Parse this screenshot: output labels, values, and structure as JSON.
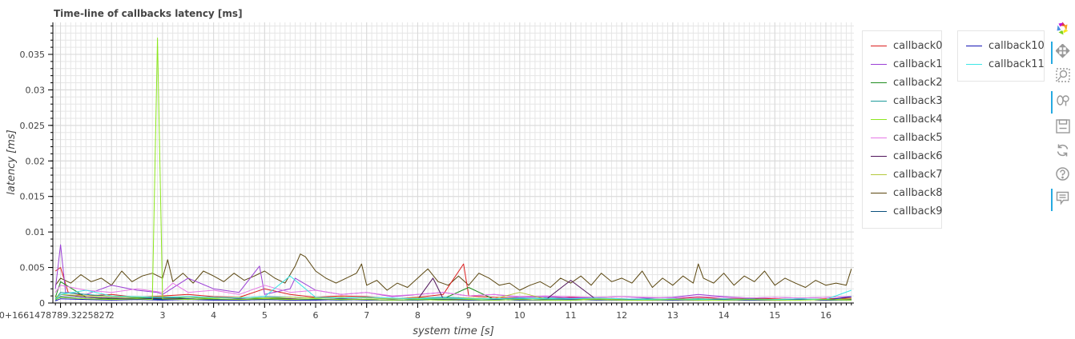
{
  "chart_data": {
    "type": "line",
    "title": "Time-line of callbacks latency [ms]",
    "xlabel": "system time [s]",
    "ylabel": "latency [ms]",
    "x_offset_label": "0+1661478789.3225827",
    "xlim": [
      0.85,
      16.55
    ],
    "ylim": [
      0,
      0.0395
    ],
    "xticks": [
      1,
      2,
      3,
      4,
      5,
      6,
      7,
      8,
      9,
      10,
      11,
      12,
      13,
      14,
      15,
      16
    ],
    "xtick_labels": [
      "0+1661478789.3225827",
      "2",
      "3",
      "4",
      "5",
      "6",
      "7",
      "8",
      "9",
      "10",
      "11",
      "12",
      "13",
      "14",
      "15",
      "16"
    ],
    "yticks": [
      0,
      0.005,
      0.01,
      0.015,
      0.02,
      0.025,
      0.03,
      0.035
    ],
    "ytick_labels": [
      "0",
      "0.005",
      "0.01",
      "0.015",
      "0.02",
      "0.025",
      "0.03",
      "0.035"
    ],
    "grid": true,
    "legend_placement": "right, outside plot",
    "series": [
      {
        "name": "callback0",
        "color": "#dc1e1e",
        "x": [
          0.9,
          1.0,
          1.15,
          1.5,
          2.0,
          2.5,
          3.0,
          3.5,
          4.0,
          4.5,
          5.0,
          5.5,
          6.0,
          6.5,
          7.0,
          7.5,
          8.0,
          8.5,
          8.9,
          9.0,
          9.5,
          10.0,
          10.5,
          11.0,
          11.5,
          12.0,
          12.5,
          13.0,
          13.5,
          14.0,
          14.5,
          15.0,
          15.5,
          16.0,
          16.5
        ],
        "y": [
          0.0045,
          0.005,
          0.0015,
          0.001,
          0.0012,
          0.0008,
          0.001,
          0.0012,
          0.0009,
          0.0008,
          0.002,
          0.0012,
          0.0008,
          0.001,
          0.0009,
          0.0006,
          0.0008,
          0.0012,
          0.0055,
          0.001,
          0.0008,
          0.0007,
          0.0006,
          0.0008,
          0.0007,
          0.0006,
          0.0005,
          0.0006,
          0.0008,
          0.0006,
          0.0007,
          0.0006,
          0.0005,
          0.0006,
          0.0007
        ]
      },
      {
        "name": "callback1",
        "color": "#9b3fd6",
        "x": [
          0.9,
          1.0,
          1.1,
          1.5,
          2.0,
          2.5,
          2.9,
          3.0,
          3.5,
          4.0,
          4.5,
          4.9,
          5.0,
          5.5,
          5.6,
          6.0,
          6.5,
          7.0,
          7.5,
          8.0,
          8.5,
          9.0,
          9.5,
          10.0,
          10.5,
          11.0,
          11.5,
          12.0,
          12.5,
          13.0,
          13.5,
          14.0,
          14.5,
          15.0,
          15.5,
          16.0,
          16.5
        ],
        "y": [
          0.002,
          0.0082,
          0.0015,
          0.0012,
          0.0025,
          0.0018,
          0.0015,
          0.0012,
          0.0035,
          0.002,
          0.0015,
          0.0052,
          0.0012,
          0.002,
          0.0035,
          0.0018,
          0.0012,
          0.0015,
          0.0009,
          0.0012,
          0.0015,
          0.001,
          0.0012,
          0.0008,
          0.0009,
          0.0007,
          0.0008,
          0.0009,
          0.0007,
          0.0008,
          0.0012,
          0.0009,
          0.0007,
          0.0008,
          0.0007,
          0.0008,
          0.0009
        ]
      },
      {
        "name": "callback2",
        "color": "#1e8c1e",
        "x": [
          0.9,
          1.0,
          1.5,
          2.0,
          2.5,
          3.0,
          3.5,
          4.0,
          4.5,
          5.0,
          5.5,
          6.0,
          6.5,
          7.0,
          7.5,
          8.0,
          8.5,
          9.0,
          9.5,
          10.0,
          10.5,
          11.0,
          11.5,
          12.0,
          12.5,
          13.0,
          13.5,
          14.0,
          14.5,
          15.0,
          15.5,
          16.0,
          16.5
        ],
        "y": [
          0.0008,
          0.003,
          0.0008,
          0.0006,
          0.0007,
          0.0006,
          0.0008,
          0.0006,
          0.0005,
          0.0007,
          0.0006,
          0.0005,
          0.0006,
          0.0005,
          0.0004,
          0.0005,
          0.0006,
          0.0022,
          0.0005,
          0.0004,
          0.0005,
          0.0004,
          0.0005,
          0.0004,
          0.0004,
          0.0005,
          0.0004,
          0.0005,
          0.0004,
          0.0004,
          0.0005,
          0.0004,
          0.0005
        ]
      },
      {
        "name": "callback3",
        "color": "#1e9b9b",
        "x": [
          0.9,
          1.0,
          1.5,
          2.0,
          2.5,
          3.0,
          3.5,
          4.0,
          4.5,
          5.0,
          5.5,
          6.0,
          6.5,
          7.0,
          7.5,
          8.0,
          8.5,
          9.0,
          9.5,
          10.0,
          10.5,
          11.0,
          11.5,
          12.0,
          12.5,
          13.0,
          13.5,
          14.0,
          14.5,
          15.0,
          15.5,
          16.0,
          16.5
        ],
        "y": [
          0.0006,
          0.0015,
          0.0012,
          0.0009,
          0.0008,
          0.0007,
          0.0009,
          0.0008,
          0.0007,
          0.0009,
          0.0008,
          0.0007,
          0.0008,
          0.0007,
          0.0006,
          0.0007,
          0.0008,
          0.0007,
          0.0006,
          0.0006,
          0.0007,
          0.0006,
          0.0006,
          0.0005,
          0.0006,
          0.0005,
          0.0006,
          0.0005,
          0.0006,
          0.0005,
          0.0006,
          0.0005,
          0.0006
        ]
      },
      {
        "name": "callback4",
        "color": "#8ce61e",
        "x": [
          0.9,
          1.0,
          1.5,
          2.0,
          2.5,
          2.8,
          2.9,
          3.0,
          3.5,
          4.0,
          4.5,
          5.0,
          5.5,
          6.0,
          6.5,
          7.0,
          7.5,
          8.0,
          8.5,
          9.0,
          9.5,
          10.0,
          10.5,
          11.0,
          11.5,
          12.0,
          12.5,
          13.0,
          13.5,
          14.0,
          14.5,
          15.0,
          15.5,
          16.0,
          16.5
        ],
        "y": [
          0.0005,
          0.0008,
          0.0006,
          0.0005,
          0.0006,
          0.0005,
          0.0373,
          0.0006,
          0.0005,
          0.0006,
          0.0005,
          0.0006,
          0.0005,
          0.0006,
          0.0005,
          0.0005,
          0.0004,
          0.0005,
          0.0004,
          0.0005,
          0.0004,
          0.0005,
          0.0004,
          0.0004,
          0.0005,
          0.0004,
          0.0004,
          0.0005,
          0.0004,
          0.0004,
          0.0005,
          0.0004,
          0.0004,
          0.0005,
          0.0004
        ]
      },
      {
        "name": "callback5",
        "color": "#e678e6",
        "x": [
          0.9,
          1.0,
          1.5,
          2.0,
          2.5,
          3.0,
          3.2,
          3.5,
          4.0,
          4.5,
          5.0,
          5.5,
          6.0,
          6.5,
          7.0,
          7.5,
          8.0,
          8.5,
          9.0,
          9.5,
          10.0,
          10.5,
          11.0,
          11.5,
          12.0,
          12.5,
          13.0,
          13.5,
          14.0,
          14.5,
          15.0,
          15.5,
          16.0,
          16.5
        ],
        "y": [
          0.0015,
          0.0025,
          0.0018,
          0.0015,
          0.002,
          0.0015,
          0.0028,
          0.0015,
          0.0018,
          0.0012,
          0.0025,
          0.0015,
          0.0018,
          0.0012,
          0.0015,
          0.001,
          0.0012,
          0.0015,
          0.001,
          0.0012,
          0.0009,
          0.001,
          0.0009,
          0.0008,
          0.0009,
          0.0008,
          0.0007,
          0.0009,
          0.0008,
          0.0007,
          0.0008,
          0.0007,
          0.0008,
          0.0009
        ]
      },
      {
        "name": "callback6",
        "color": "#50145a",
        "x": [
          0.9,
          1.0,
          1.5,
          2.0,
          2.5,
          3.0,
          3.5,
          4.0,
          4.5,
          5.0,
          5.5,
          6.0,
          6.5,
          7.0,
          7.5,
          8.0,
          8.3,
          8.5,
          9.0,
          9.5,
          10.0,
          10.5,
          11.0,
          11.5,
          12.0,
          12.5,
          13.0,
          13.5,
          14.0,
          14.5,
          15.0,
          15.5,
          16.0,
          16.5
        ],
        "y": [
          0.0005,
          0.0012,
          0.0008,
          0.0007,
          0.0006,
          0.0007,
          0.0006,
          0.0005,
          0.0006,
          0.0005,
          0.0006,
          0.0005,
          0.0006,
          0.0005,
          0.0004,
          0.0005,
          0.0035,
          0.0006,
          0.0005,
          0.0004,
          0.0005,
          0.0004,
          0.0032,
          0.0005,
          0.0004,
          0.0004,
          0.0005,
          0.0004,
          0.0005,
          0.0004,
          0.0004,
          0.0005,
          0.0004,
          0.0005
        ]
      },
      {
        "name": "callback7",
        "color": "#b4c83c",
        "x": [
          0.9,
          1.0,
          1.5,
          2.0,
          2.5,
          3.0,
          3.5,
          4.0,
          4.5,
          5.0,
          5.5,
          6.0,
          6.5,
          7.0,
          7.5,
          8.0,
          8.5,
          9.0,
          9.5,
          10.0,
          10.5,
          11.0,
          11.5,
          12.0,
          12.5,
          13.0,
          13.5,
          14.0,
          14.5,
          15.0,
          15.5,
          16.0,
          16.5
        ],
        "y": [
          0.0008,
          0.0012,
          0.001,
          0.0009,
          0.0008,
          0.0009,
          0.0008,
          0.0007,
          0.0008,
          0.0007,
          0.0008,
          0.0007,
          0.0008,
          0.0007,
          0.0006,
          0.0007,
          0.0006,
          0.0007,
          0.0006,
          0.0015,
          0.0006,
          0.0005,
          0.0006,
          0.0005,
          0.0005,
          0.0006,
          0.0005,
          0.0006,
          0.0005,
          0.0005,
          0.0006,
          0.0005,
          0.0006
        ]
      },
      {
        "name": "callback8",
        "color": "#5a460f",
        "x": [
          0.9,
          1.0,
          1.2,
          1.4,
          1.6,
          1.8,
          2.0,
          2.2,
          2.4,
          2.6,
          2.8,
          3.0,
          3.1,
          3.2,
          3.4,
          3.6,
          3.8,
          4.0,
          4.2,
          4.4,
          4.6,
          4.8,
          5.0,
          5.2,
          5.4,
          5.6,
          5.7,
          5.8,
          6.0,
          6.2,
          6.4,
          6.6,
          6.8,
          6.9,
          7.0,
          7.2,
          7.4,
          7.6,
          7.8,
          8.0,
          8.2,
          8.4,
          8.6,
          8.8,
          9.0,
          9.2,
          9.4,
          9.6,
          9.8,
          10.0,
          10.2,
          10.4,
          10.6,
          10.8,
          11.0,
          11.2,
          11.4,
          11.6,
          11.8,
          12.0,
          12.2,
          12.4,
          12.6,
          12.8,
          13.0,
          13.2,
          13.4,
          13.5,
          13.6,
          13.8,
          14.0,
          14.2,
          14.4,
          14.6,
          14.8,
          15.0,
          15.2,
          15.4,
          15.6,
          15.8,
          16.0,
          16.2,
          16.4,
          16.5
        ],
        "y": [
          0.0025,
          0.0035,
          0.0028,
          0.004,
          0.003,
          0.0035,
          0.0025,
          0.0045,
          0.003,
          0.0038,
          0.0042,
          0.0035,
          0.0061,
          0.003,
          0.0042,
          0.0028,
          0.0045,
          0.0038,
          0.003,
          0.0042,
          0.0032,
          0.0038,
          0.0045,
          0.0035,
          0.0028,
          0.0052,
          0.0069,
          0.0065,
          0.0045,
          0.0035,
          0.0028,
          0.0035,
          0.0042,
          0.0055,
          0.0025,
          0.0032,
          0.0018,
          0.0028,
          0.0022,
          0.0035,
          0.0048,
          0.003,
          0.0025,
          0.0038,
          0.0025,
          0.0042,
          0.0035,
          0.0025,
          0.0028,
          0.0018,
          0.0025,
          0.003,
          0.0022,
          0.0035,
          0.0028,
          0.0038,
          0.0025,
          0.0042,
          0.003,
          0.0035,
          0.0028,
          0.0045,
          0.0022,
          0.0035,
          0.0025,
          0.0038,
          0.0028,
          0.0055,
          0.0035,
          0.0028,
          0.0042,
          0.0025,
          0.0038,
          0.003,
          0.0045,
          0.0025,
          0.0035,
          0.0028,
          0.0022,
          0.0032,
          0.0025,
          0.0028,
          0.0025,
          0.0048
        ]
      },
      {
        "name": "callback9",
        "color": "#0a507d",
        "x": [
          0.9,
          1.0,
          1.5,
          2.0,
          2.5,
          3.0,
          3.5,
          4.0,
          4.5,
          5.0,
          5.5,
          6.0,
          6.5,
          7.0,
          7.5,
          8.0,
          8.5,
          9.0,
          9.5,
          10.0,
          10.5,
          11.0,
          11.5,
          12.0,
          12.5,
          13.0,
          13.5,
          14.0,
          14.5,
          15.0,
          15.5,
          16.0,
          16.5
        ],
        "y": [
          0.0004,
          0.0009,
          0.0006,
          0.0005,
          0.0006,
          0.0005,
          0.0006,
          0.0005,
          0.0004,
          0.0005,
          0.0004,
          0.0005,
          0.0004,
          0.0005,
          0.0004,
          0.0004,
          0.0005,
          0.0004,
          0.0004,
          0.0005,
          0.0004,
          0.0004,
          0.0005,
          0.0004,
          0.0004,
          0.0004,
          0.0005,
          0.0004,
          0.0004,
          0.0004,
          0.0005,
          0.0004,
          0.0004
        ]
      },
      {
        "name": "callback10",
        "color": "#1414b4",
        "x": [
          0.9,
          1.0,
          1.5,
          2.0,
          2.5,
          3.0,
          3.5,
          4.0,
          4.5,
          5.0,
          5.5,
          6.0,
          6.5,
          7.0,
          7.5,
          8.0,
          8.5,
          9.0,
          9.5,
          10.0,
          10.5,
          11.0,
          11.5,
          12.0,
          12.5,
          13.0,
          13.5,
          14.0,
          14.5,
          15.0,
          15.5,
          16.0,
          16.5
        ],
        "y": [
          0.0003,
          0.0006,
          0.0005,
          0.0004,
          0.0005,
          0.0004,
          0.0005,
          0.0004,
          0.0004,
          0.0005,
          0.0004,
          0.0004,
          0.0005,
          0.0004,
          0.0004,
          0.0005,
          0.0004,
          0.0004,
          0.0005,
          0.0004,
          0.0004,
          0.0005,
          0.0004,
          0.0004,
          0.0005,
          0.0004,
          0.0004,
          0.0005,
          0.0004,
          0.0004,
          0.0005,
          0.0004,
          0.0009
        ]
      },
      {
        "name": "callback11",
        "color": "#3ce6e6",
        "x": [
          0.9,
          1.0,
          1.5,
          2.0,
          2.5,
          3.0,
          3.5,
          4.0,
          4.5,
          5.0,
          5.5,
          6.0,
          6.5,
          7.0,
          7.5,
          8.0,
          8.5,
          9.0,
          9.5,
          10.0,
          10.5,
          11.0,
          11.5,
          12.0,
          12.5,
          13.0,
          13.5,
          14.0,
          14.5,
          15.0,
          15.5,
          16.0,
          16.5
        ],
        "y": [
          0.0005,
          0.0012,
          0.0018,
          0.001,
          0.0009,
          0.0008,
          0.0009,
          0.0008,
          0.0007,
          0.0009,
          0.0038,
          0.0008,
          0.0007,
          0.0008,
          0.0007,
          0.0006,
          0.0007,
          0.0006,
          0.0006,
          0.0007,
          0.0006,
          0.0006,
          0.0007,
          0.0006,
          0.0005,
          0.0006,
          0.0005,
          0.0006,
          0.0005,
          0.0005,
          0.0006,
          0.0005,
          0.0018
        ]
      }
    ]
  },
  "toolbar": {
    "tools": [
      {
        "name": "bokeh-logo-icon",
        "active": false
      },
      {
        "name": "pan-tool-icon",
        "active": true
      },
      {
        "name": "box-zoom-tool-icon",
        "active": false
      },
      {
        "name": "wheel-zoom-tool-icon",
        "active": true
      },
      {
        "name": "save-tool-icon",
        "active": false
      },
      {
        "name": "reset-tool-icon",
        "active": false
      },
      {
        "name": "help-tool-icon",
        "active": false
      },
      {
        "name": "hover-tool-icon",
        "active": true
      }
    ]
  }
}
